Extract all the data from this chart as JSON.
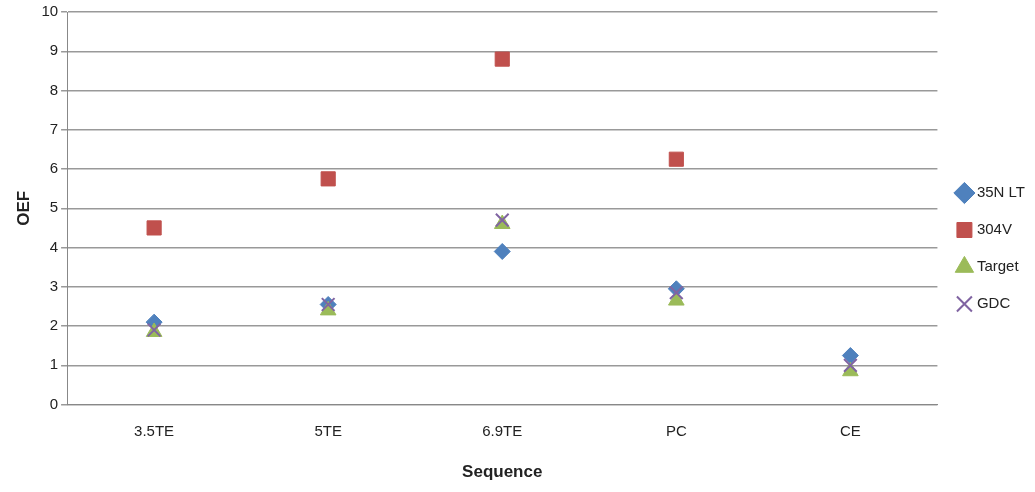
{
  "chart_data": {
    "type": "scatter",
    "xlabel": "Sequence",
    "ylabel": "OEF",
    "categories": [
      "3.5TE",
      "5TE",
      "6.9TE",
      "PC",
      "CE"
    ],
    "ylim": [
      0,
      10
    ],
    "yticks": [
      0,
      1,
      2,
      3,
      4,
      5,
      6,
      7,
      8,
      9,
      10
    ],
    "grid": "y",
    "legend": "right",
    "series": [
      {
        "name": "35N LT",
        "color": "#4f81bd",
        "marker": "diamond",
        "values": [
          2.1,
          2.55,
          3.9,
          2.95,
          1.25
        ]
      },
      {
        "name": "304V",
        "color": "#c0504d",
        "marker": "square",
        "values": [
          4.5,
          5.75,
          8.8,
          6.25,
          null
        ]
      },
      {
        "name": "Target",
        "color": "#9bbb59",
        "marker": "triangle",
        "values": [
          1.85,
          2.4,
          4.6,
          2.65,
          0.85
        ]
      },
      {
        "name": "GDC",
        "color": "#8064a2",
        "marker": "cross",
        "values": [
          1.9,
          2.55,
          4.7,
          2.85,
          1.0
        ]
      }
    ]
  }
}
